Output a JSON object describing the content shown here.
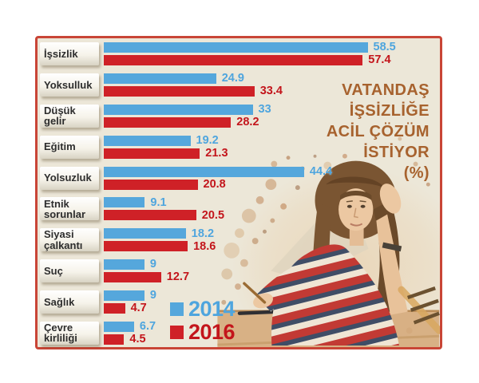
{
  "chart_data": {
    "type": "bar",
    "orientation": "horizontal",
    "title": "VATANDAŞ İŞSİZLİĞE ACİL ÇÖZÜM İSTİYOR (%)",
    "title_lines": [
      "VATANDAŞ",
      "İŞSİZLİĞE",
      "ACİL ÇÖZÜM",
      "İSTİYOR",
      "(%)"
    ],
    "categories": [
      "İşsizlik",
      "Yoksulluk",
      "Düşük gelir",
      "Eğitim",
      "Yolsuzluk",
      "Etnik sorunlar",
      "Siyasi çalkantı",
      "Suç",
      "Sağlık",
      "Çevre kirliliği"
    ],
    "series": [
      {
        "name": "2014",
        "color": "#55a7dc",
        "label_color": "#4ea5de",
        "values": [
          58.5,
          24.9,
          33,
          19.2,
          44.4,
          9.1,
          18.2,
          9,
          9,
          6.7
        ]
      },
      {
        "name": "2016",
        "color": "#cf2127",
        "label_color": "#c3151b",
        "values": [
          57.4,
          33.4,
          28.2,
          21.3,
          20.8,
          20.5,
          18.6,
          12.7,
          4.7,
          4.5
        ]
      }
    ],
    "xlim": [
      0,
      60
    ],
    "grid": false,
    "value_labels": true,
    "legend_position": "inside-bottom-center"
  },
  "legend": {
    "items": [
      {
        "label": "2014",
        "color": "#55a7dc"
      },
      {
        "label": "2016",
        "color": "#cf2127"
      }
    ]
  },
  "panel": {
    "background": "#ece7d8",
    "border_color": "#c94536",
    "title_color": "#a7622e",
    "category_text_color": "#2d2d2d"
  }
}
